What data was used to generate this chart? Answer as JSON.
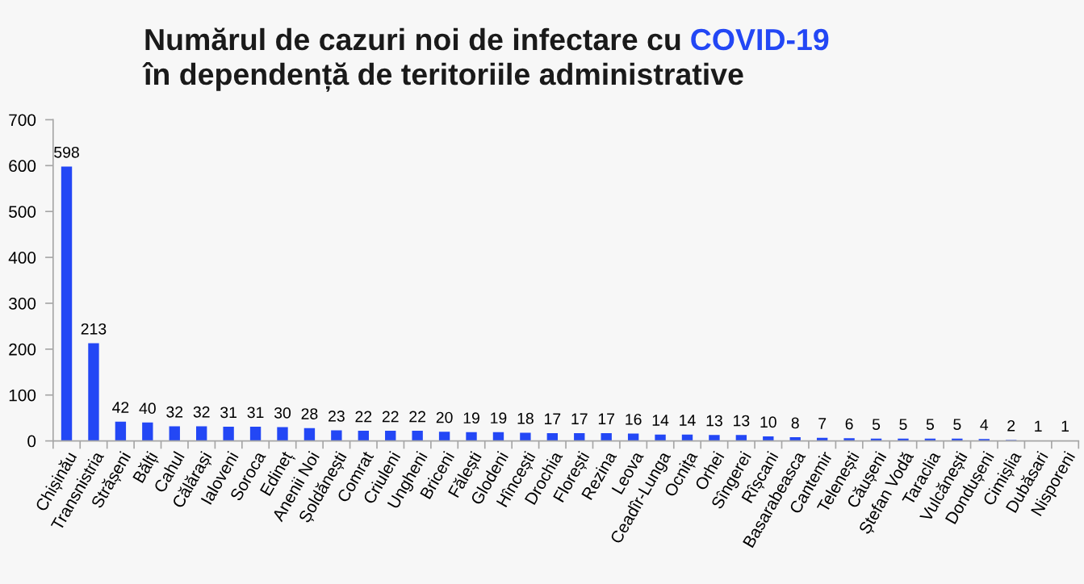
{
  "chart_data": {
    "type": "bar",
    "title": "Numărul de cazuri noi de infectare cu COVID-19\nîn dependență de teritoriile administrative",
    "categories": [
      "Chișinău",
      "Transnistria",
      "Strășeni",
      "Bălți",
      "Cahul",
      "Călărași",
      "Ialoveni",
      "Soroca",
      "Edineț",
      "Anenii Noi",
      "Șoldănești",
      "Comrat",
      "Criuleni",
      "Ungheni",
      "Briceni",
      "Fălești",
      "Glodeni",
      "Hîncești",
      "Drochia",
      "Florești",
      "Rezina",
      "Leova",
      "Ceadîr-Lunga",
      "Ocnița",
      "Orhei",
      "Sîngerei",
      "Rîșcani",
      "Basarabeasca",
      "Cantemir",
      "Telenești",
      "Căușeni",
      "Ștefan Vodă",
      "Taraclia",
      "Vulcănești",
      "Dondușeni",
      "Cimișlia",
      "Dubăsari",
      "Nisporeni"
    ],
    "values": [
      598,
      213,
      42,
      40,
      32,
      32,
      31,
      31,
      30,
      28,
      23,
      22,
      22,
      22,
      20,
      19,
      19,
      18,
      17,
      17,
      17,
      16,
      14,
      14,
      13,
      13,
      10,
      8,
      7,
      6,
      5,
      5,
      5,
      5,
      4,
      2,
      1,
      1
    ],
    "color": "#2347f5",
    "ylim": [
      0,
      700
    ],
    "yticks": [
      0,
      100,
      200,
      300,
      400,
      500,
      600,
      700
    ],
    "data_labels": true,
    "grid": false
  }
}
